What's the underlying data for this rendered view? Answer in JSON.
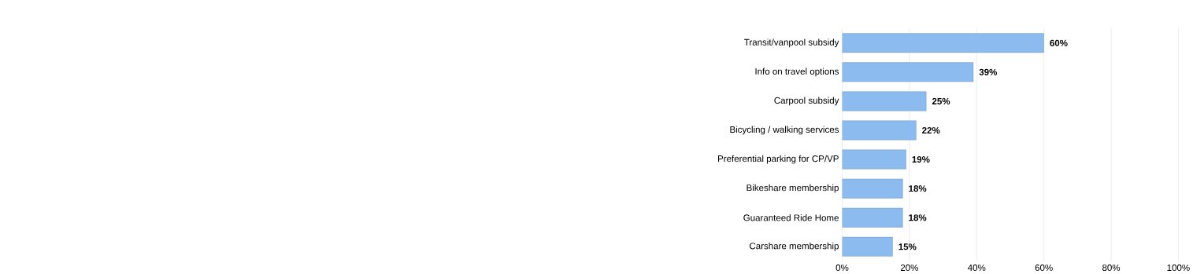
{
  "chart_data": {
    "type": "bar",
    "orientation": "horizontal",
    "categories": [
      "Transit/vanpool subsidy",
      "Info on travel options",
      "Carpool subsidy",
      "Bicycling / walking services",
      "Preferential parking for CP/VP",
      "Bikeshare membership",
      "Guaranteed Ride Home",
      "Carshare membership"
    ],
    "values": [
      60,
      39,
      25,
      22,
      19,
      18,
      18,
      15
    ],
    "value_labels": [
      "60%",
      "39%",
      "25%",
      "22%",
      "19%",
      "18%",
      "18%",
      "15%"
    ],
    "color": "#8cbbf0",
    "xlim": [
      0,
      100
    ],
    "xticks": [
      {
        "value": 0,
        "label": "0%"
      },
      {
        "value": 20,
        "label": "20%"
      },
      {
        "value": 40,
        "label": "40%"
      },
      {
        "value": 60,
        "label": "60%"
      },
      {
        "value": 80,
        "label": "80%"
      },
      {
        "value": 100,
        "label": "100%"
      }
    ],
    "grid": "x"
  }
}
